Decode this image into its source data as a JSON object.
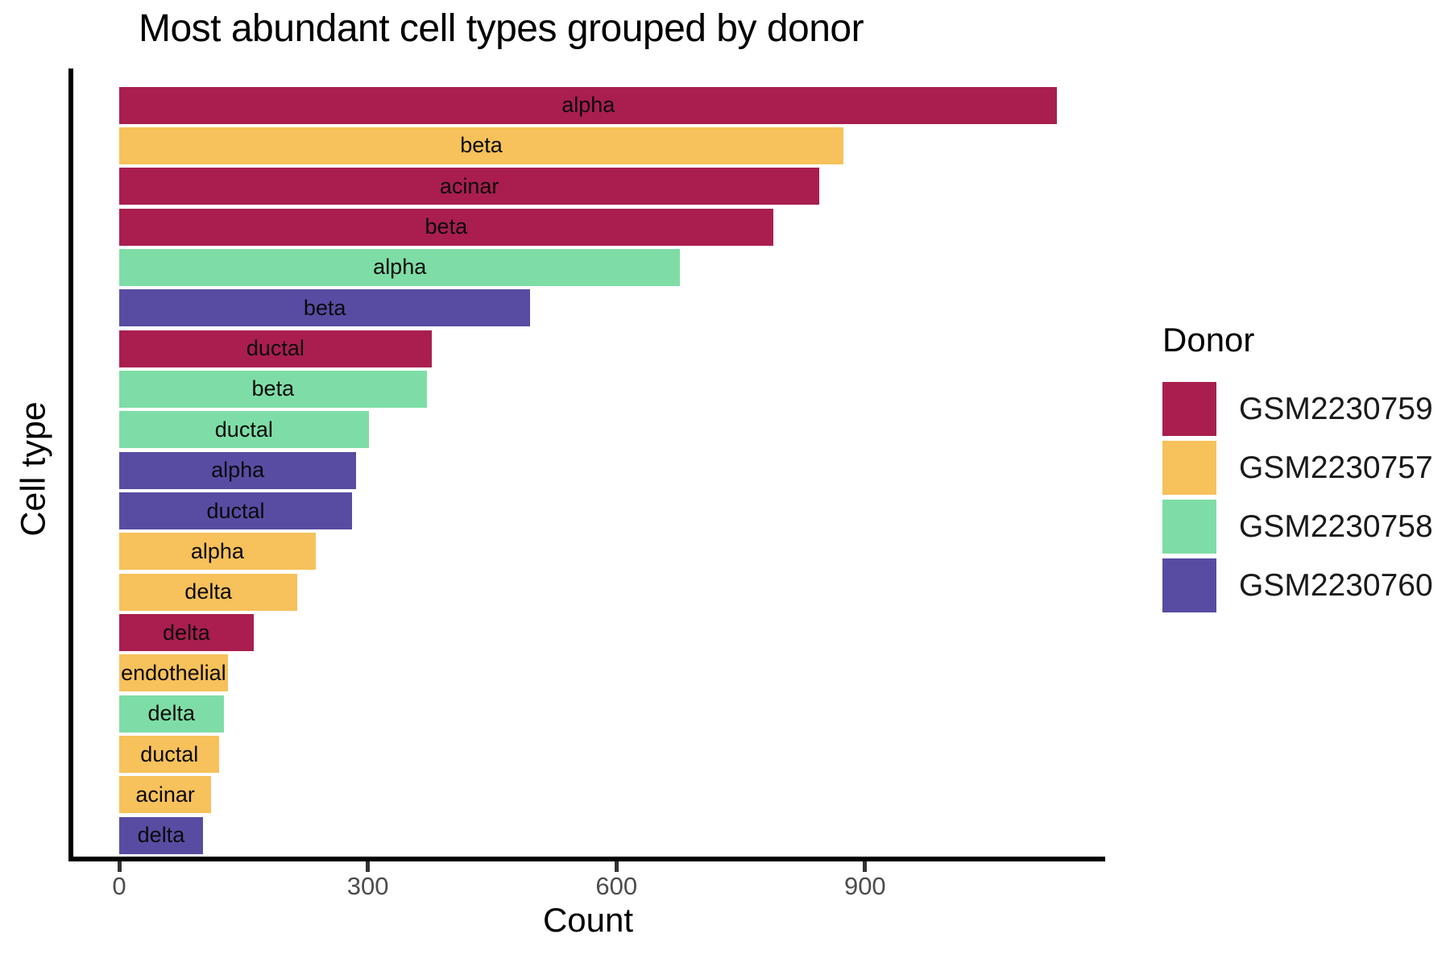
{
  "title": "Most abundant cell types grouped by donor",
  "chart_data": {
    "type": "bar",
    "orientation": "horizontal",
    "title": "Most abundant cell types grouped by donor",
    "xlabel": "Count",
    "ylabel": "Cell type",
    "x_ticks": [
      0,
      300,
      600,
      900
    ],
    "xlim": [
      0,
      1190
    ],
    "grid": false,
    "legend_position": "right",
    "legend_title": "Donor",
    "legend": [
      {
        "label": "GSM2230759",
        "color": "#A91E4F"
      },
      {
        "label": "GSM2230757",
        "color": "#F7C15B"
      },
      {
        "label": "GSM2230758",
        "color": "#7EDDA6"
      },
      {
        "label": "GSM2230760",
        "color": "#574CA2"
      }
    ],
    "bars": [
      {
        "cell_type": "alpha",
        "donor": "GSM2230759",
        "count": 1132
      },
      {
        "cell_type": "beta",
        "donor": "GSM2230757",
        "count": 874
      },
      {
        "cell_type": "acinar",
        "donor": "GSM2230759",
        "count": 845
      },
      {
        "cell_type": "beta",
        "donor": "GSM2230759",
        "count": 789
      },
      {
        "cell_type": "alpha",
        "donor": "GSM2230758",
        "count": 677
      },
      {
        "cell_type": "beta",
        "donor": "GSM2230760",
        "count": 496
      },
      {
        "cell_type": "ductal",
        "donor": "GSM2230759",
        "count": 377
      },
      {
        "cell_type": "beta",
        "donor": "GSM2230758",
        "count": 371
      },
      {
        "cell_type": "ductal",
        "donor": "GSM2230758",
        "count": 301
      },
      {
        "cell_type": "alpha",
        "donor": "GSM2230760",
        "count": 286
      },
      {
        "cell_type": "ductal",
        "donor": "GSM2230760",
        "count": 281
      },
      {
        "cell_type": "alpha",
        "donor": "GSM2230757",
        "count": 237
      },
      {
        "cell_type": "delta",
        "donor": "GSM2230757",
        "count": 215
      },
      {
        "cell_type": "delta",
        "donor": "GSM2230759",
        "count": 162
      },
      {
        "cell_type": "endothelial",
        "donor": "GSM2230757",
        "count": 131
      },
      {
        "cell_type": "delta",
        "donor": "GSM2230758",
        "count": 126
      },
      {
        "cell_type": "ductal",
        "donor": "GSM2230757",
        "count": 121
      },
      {
        "cell_type": "acinar",
        "donor": "GSM2230757",
        "count": 111
      },
      {
        "cell_type": "delta",
        "donor": "GSM2230760",
        "count": 101
      }
    ]
  }
}
